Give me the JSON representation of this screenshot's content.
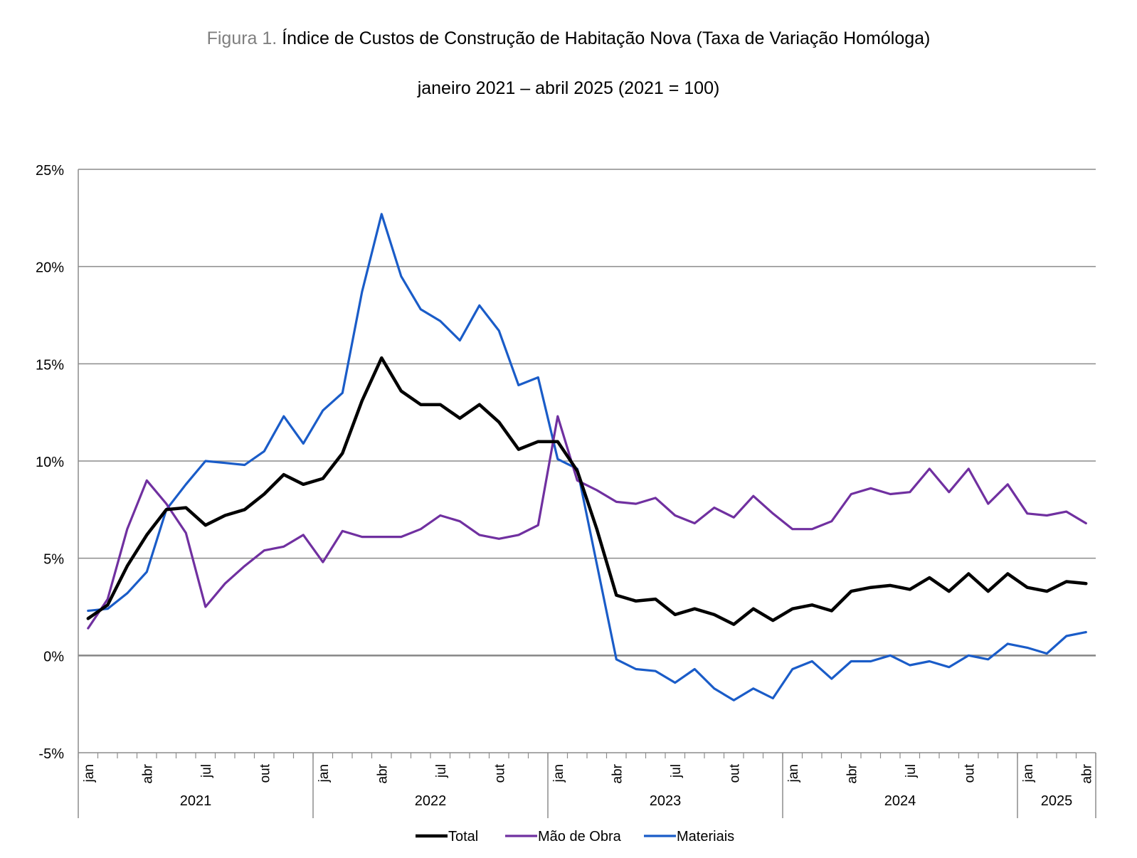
{
  "header": {
    "figure_prefix": "Figura 1.",
    "title": "Índice de Custos de Construção de Habitação Nova (Taxa de Variação Homóloga)",
    "subtitle": "janeiro 2021 – abril 2025 (2021 = 100)"
  },
  "chart_data": {
    "type": "line",
    "title": "Índice de Custos de Construção de Habitação Nova (Taxa de Variação Homóloga)",
    "subtitle": "janeiro 2021 – abril 2025 (2021 = 100)",
    "xlabel": "",
    "ylabel": "",
    "ylim": [
      -5,
      25
    ],
    "yticks": [
      -5,
      0,
      5,
      10,
      15,
      20,
      25
    ],
    "ytick_labels": [
      "-5%",
      "0%",
      "5%",
      "10%",
      "15%",
      "20%",
      "25%"
    ],
    "grid": true,
    "legend_position": "bottom",
    "month_labels": [
      "jan",
      "",
      "",
      "abr",
      "",
      "",
      "jul",
      "",
      "",
      "out",
      "",
      "",
      "jan",
      "",
      "",
      "abr",
      "",
      "",
      "jul",
      "",
      "",
      "out",
      "",
      "",
      "jan",
      "",
      "",
      "abr",
      "",
      "",
      "jul",
      "",
      "",
      "out",
      "",
      "",
      "jan",
      "",
      "",
      "abr",
      "",
      "",
      "jul",
      "",
      "",
      "out",
      "",
      "",
      "jan",
      "",
      "",
      "abr"
    ],
    "year_groups": [
      {
        "label": "2021",
        "count": 12
      },
      {
        "label": "2022",
        "count": 12
      },
      {
        "label": "2023",
        "count": 12
      },
      {
        "label": "2024",
        "count": 12
      },
      {
        "label": "2025",
        "count": 4
      }
    ],
    "series": [
      {
        "name": "Total",
        "color": "#000000",
        "values": [
          1.9,
          2.6,
          4.6,
          6.2,
          7.5,
          7.6,
          6.7,
          7.2,
          7.5,
          8.3,
          9.3,
          8.8,
          9.1,
          10.4,
          13.1,
          15.3,
          13.6,
          12.9,
          12.9,
          12.2,
          12.9,
          12.0,
          10.6,
          11.0,
          11.0,
          9.5,
          6.5,
          3.1,
          2.8,
          2.9,
          2.1,
          2.4,
          2.1,
          1.6,
          2.4,
          1.8,
          2.4,
          2.6,
          2.3,
          3.3,
          3.5,
          3.6,
          3.4,
          4.0,
          3.3,
          4.2,
          3.3,
          4.2,
          3.5,
          3.3,
          3.8,
          3.7
        ]
      },
      {
        "name": "Mão de Obra",
        "color": "#7030a0",
        "values": [
          1.4,
          2.9,
          6.5,
          9.0,
          7.8,
          6.3,
          2.5,
          3.7,
          4.6,
          5.4,
          5.6,
          6.2,
          4.8,
          6.4,
          6.1,
          6.1,
          6.1,
          6.5,
          7.2,
          6.9,
          6.2,
          6.0,
          6.2,
          6.7,
          12.3,
          9.0,
          8.5,
          7.9,
          7.8,
          8.1,
          7.2,
          6.8,
          7.6,
          7.1,
          8.2,
          7.3,
          6.5,
          6.5,
          6.9,
          8.3,
          8.6,
          8.3,
          8.4,
          9.6,
          8.4,
          9.6,
          7.8,
          8.8,
          7.3,
          7.2,
          7.4,
          6.8
        ]
      },
      {
        "name": "Materiais",
        "color": "#1a5cc8",
        "values": [
          2.3,
          2.4,
          3.2,
          4.3,
          7.5,
          8.8,
          10.0,
          9.9,
          9.8,
          10.5,
          12.3,
          10.9,
          12.6,
          13.5,
          18.7,
          22.7,
          19.5,
          17.8,
          17.2,
          16.2,
          18.0,
          16.7,
          13.9,
          14.3,
          10.1,
          9.6,
          4.7,
          -0.2,
          -0.7,
          -0.8,
          -1.4,
          -0.7,
          -1.7,
          -2.3,
          -1.7,
          -2.2,
          -0.7,
          -0.3,
          -1.2,
          -0.3,
          -0.3,
          0.0,
          -0.5,
          -0.3,
          -0.6,
          0.0,
          -0.2,
          0.6,
          0.4,
          0.1,
          1.0,
          1.2
        ]
      }
    ]
  }
}
